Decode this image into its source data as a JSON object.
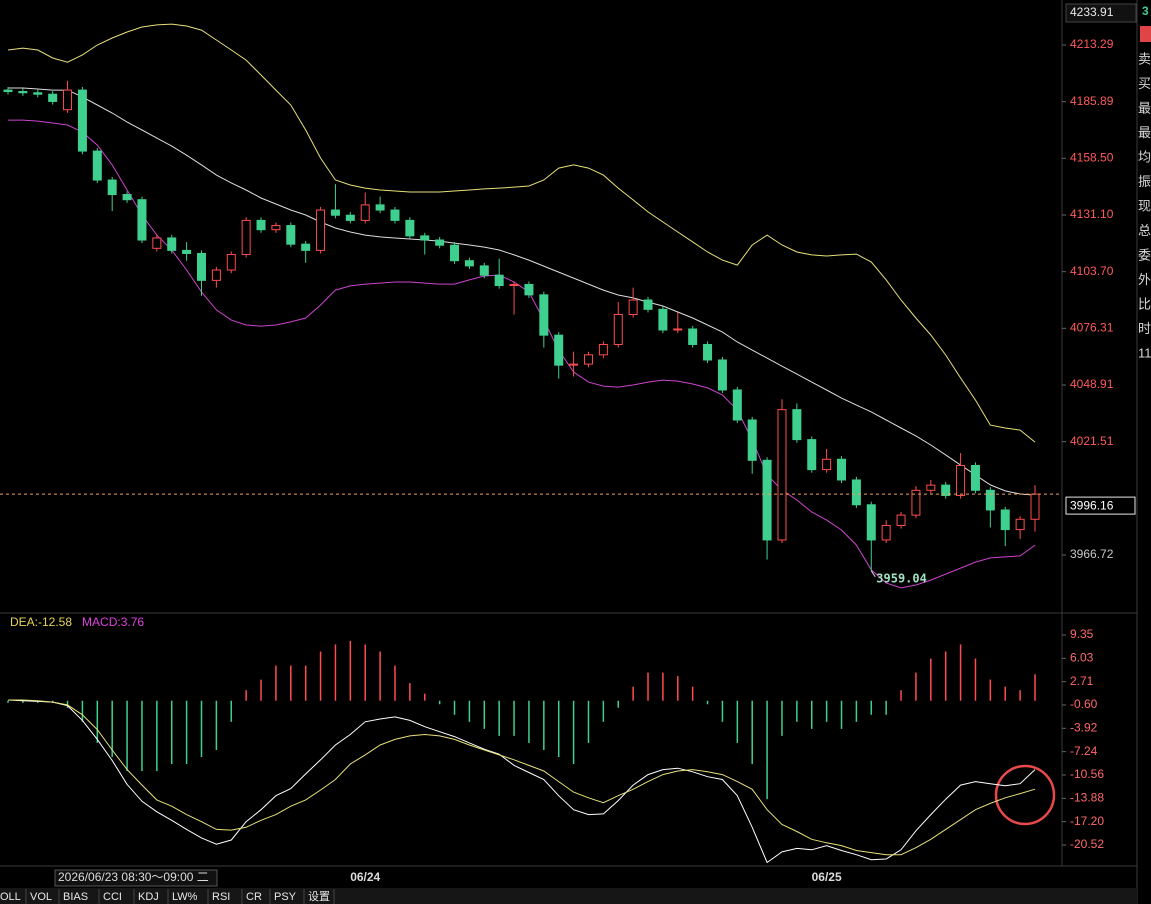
{
  "chart_data": [
    {
      "type": "candlestick",
      "categories": [
        null,
        null,
        null,
        null,
        null,
        null,
        null,
        null,
        null,
        null,
        null,
        null,
        null,
        null,
        null,
        null,
        null,
        null,
        null,
        null,
        null,
        null,
        null,
        null,
        "06/24",
        null,
        null,
        null,
        null,
        null,
        null,
        null,
        null,
        null,
        null,
        null,
        null,
        null,
        null,
        null,
        null,
        null,
        null,
        null,
        null,
        null,
        null,
        null,
        null,
        null,
        null,
        null,
        null,
        null,
        null,
        "06/25",
        null,
        null,
        null,
        null,
        null,
        null,
        null,
        null,
        null,
        null,
        null,
        null,
        null,
        null
      ],
      "open": [
        4191.5,
        4190.8,
        4190.2,
        4189.5,
        4182.0,
        4191.5,
        4162.0,
        4148.0,
        4141.0,
        4138.5,
        4115.0,
        4120.0,
        4114.0,
        4112.5,
        4099.5,
        4104.5,
        4112.0,
        4128.5,
        4124.0,
        4126.0,
        4117.0,
        4114.0,
        4133.5,
        4131.0,
        4128.5,
        4136.0,
        4133.5,
        4128.5,
        4121.0,
        4119.0,
        4116.5,
        4109.0,
        4106.5,
        4102.0,
        4097.0,
        4097.5,
        4092.5,
        4073.0,
        4058.5,
        4059.0,
        4063.5,
        4068.5,
        4083.0,
        4090.0,
        4085.5,
        4075.5,
        4076.0,
        4068.5,
        4061.0,
        4046.5,
        4032.0,
        4012.5,
        3974.0,
        4037.0,
        4022.5,
        4008.0,
        4013.0,
        4003.0,
        3991.0,
        3974.0,
        3981.0,
        3986.0,
        3998.0,
        4000.5,
        3995.5,
        4010.0,
        3998.0,
        3988.5,
        3979.0,
        3984.0
      ],
      "high": [
        4193.0,
        4192.3,
        4191.7,
        4191.0,
        4196.0,
        4193.0,
        4163.5,
        4149.5,
        4142.5,
        4140.0,
        4121.5,
        4121.5,
        4118.0,
        4114.0,
        4106.0,
        4113.5,
        4130.0,
        4130.0,
        4127.5,
        4127.5,
        4118.5,
        4135.0,
        4146.0,
        4132.5,
        4142.0,
        4140.0,
        4135.0,
        4130.0,
        4122.5,
        4120.5,
        4118.0,
        4110.5,
        4108.0,
        4110.0,
        4099.0,
        4099.0,
        4094.0,
        4074.5,
        4065.0,
        4065.0,
        4070.0,
        4089.0,
        4096.0,
        4091.5,
        4087.0,
        4084.0,
        4077.5,
        4070.0,
        4062.5,
        4048.0,
        4033.5,
        4014.0,
        4042.0,
        4040.0,
        4024.0,
        4018.0,
        4014.5,
        4004.5,
        3992.5,
        3983.5,
        3987.5,
        4000.0,
        4003.0,
        4002.0,
        4016.0,
        4011.5,
        3999.5,
        3990.0,
        3985.5,
        4000.5
      ],
      "low": [
        4189.3,
        4188.7,
        4188.0,
        4184.5,
        4180.5,
        4160.5,
        4146.5,
        4133.0,
        4137.0,
        4117.5,
        4113.5,
        4112.5,
        4109.0,
        4092.0,
        4096.0,
        4103.0,
        4110.5,
        4122.5,
        4122.5,
        4115.5,
        4108.0,
        4112.5,
        4129.5,
        4127.0,
        4127.0,
        4132.0,
        4127.0,
        4119.5,
        4112.0,
        4115.0,
        4107.5,
        4105.0,
        4100.5,
        4095.5,
        4083.0,
        4091.0,
        4067.0,
        4052.0,
        4053.0,
        4057.5,
        4062.0,
        4067.0,
        4081.5,
        4084.0,
        4074.0,
        4074.0,
        4067.0,
        4059.5,
        4045.0,
        4030.5,
        4006.0,
        3964.5,
        3972.5,
        4021.0,
        4006.5,
        4006.5,
        4001.5,
        3989.5,
        3959.04,
        3972.5,
        3979.5,
        3984.5,
        3996.5,
        3994.0,
        3994.0,
        3996.5,
        3980.0,
        3971.0,
        3974.5,
        3978.0
      ],
      "close": [
        4190.8,
        4190.2,
        4189.5,
        4186.0,
        4191.5,
        4162.0,
        4148.0,
        4141.0,
        4138.5,
        4119.0,
        4120.0,
        4114.0,
        4112.5,
        4099.5,
        4104.5,
        4112.0,
        4128.5,
        4124.0,
        4126.0,
        4117.0,
        4114.0,
        4133.5,
        4131.0,
        4128.5,
        4136.0,
        4133.5,
        4128.5,
        4121.0,
        4119.0,
        4116.5,
        4109.0,
        4106.5,
        4102.0,
        4097.0,
        4097.5,
        4092.5,
        4073.0,
        4058.5,
        4059.0,
        4063.5,
        4068.5,
        4083.0,
        4090.0,
        4085.5,
        4075.5,
        4076.0,
        4068.5,
        4061.0,
        4046.5,
        4032.0,
        4012.5,
        3974.0,
        4037.0,
        4022.5,
        4008.0,
        4013.0,
        4003.0,
        3991.0,
        3974.0,
        3981.0,
        3986.0,
        3998.0,
        4000.5,
        3995.5,
        4010.0,
        3998.0,
        3988.5,
        3979.0,
        3984.0,
        3996.16
      ],
      "up_color": "#ff4d4d",
      "down_color": "#3fd08f",
      "bands": [
        {
          "color": "#e6e07a",
          "values": [
            4210.9,
            4211.8,
            4210.9,
            4207.0,
            4205.0,
            4208.5,
            4213.3,
            4216.7,
            4219.6,
            4222.0,
            4223.0,
            4223.4,
            4222.5,
            4220.5,
            4215.7,
            4210.9,
            4206.0,
            4198.8,
            4191.5,
            4184.3,
            4172.2,
            4158.6,
            4148.0,
            4145.6,
            4144.1,
            4143.2,
            4142.7,
            4142.2,
            4142.2,
            4142.2,
            4142.7,
            4143.2,
            4143.7,
            4144.1,
            4144.6,
            4145.1,
            4148.0,
            4153.8,
            4155.3,
            4153.8,
            4150.4,
            4144.1,
            4138.4,
            4132.6,
            4127.7,
            4122.9,
            4118.1,
            4113.2,
            4109.3,
            4106.9,
            4116.6,
            4121.4,
            4116.6,
            4113.2,
            4111.8,
            4111.3,
            4111.8,
            4112.2,
            4108.4,
            4099.7,
            4090.0,
            4081.3,
            4073.1,
            4063.4,
            4052.3,
            4041.6,
            4029.5,
            4028.1,
            4027.1,
            4021.3
          ]
        },
        {
          "color": "#dddddd",
          "values": [
            4192.5,
            4192.5,
            4192.0,
            4191.5,
            4191.5,
            4188.2,
            4184.3,
            4180.4,
            4176.0,
            4172.2,
            4168.3,
            4164.4,
            4160.0,
            4155.3,
            4150.4,
            4146.6,
            4143.2,
            4139.3,
            4136.4,
            4133.5,
            4131.1,
            4127.7,
            4124.8,
            4122.9,
            4121.4,
            4120.5,
            4120.0,
            4119.5,
            4119.0,
            4118.5,
            4117.5,
            4116.6,
            4115.6,
            4114.2,
            4111.8,
            4109.3,
            4106.4,
            4103.5,
            4100.6,
            4097.7,
            4094.8,
            4092.4,
            4091.0,
            4089.0,
            4087.1,
            4084.2,
            4081.3,
            4077.9,
            4074.5,
            4069.7,
            4065.8,
            4061.9,
            4058.0,
            4054.2,
            4050.3,
            4046.5,
            4042.6,
            4039.2,
            4035.9,
            4032.0,
            4028.1,
            4024.3,
            4019.9,
            4015.1,
            4010.2,
            4005.4,
            4000.6,
            3997.7,
            3996.2,
            3995.7
          ]
        },
        {
          "color": "#cc44cc",
          "values": [
            4177.0,
            4177.0,
            4176.5,
            4175.6,
            4174.6,
            4171.2,
            4164.9,
            4155.3,
            4143.2,
            4131.1,
            4121.4,
            4114.2,
            4104.5,
            4093.9,
            4085.2,
            4080.3,
            4077.9,
            4077.4,
            4077.9,
            4079.4,
            4081.3,
            4087.6,
            4094.8,
            4096.8,
            4097.7,
            4098.2,
            4098.7,
            4098.7,
            4098.2,
            4097.7,
            4097.7,
            4099.7,
            4101.6,
            4102.1,
            4098.7,
            4093.9,
            4080.3,
            4065.8,
            4055.2,
            4050.3,
            4048.4,
            4047.9,
            4048.9,
            4050.3,
            4051.3,
            4050.8,
            4049.4,
            4047.5,
            4044.1,
            4036.8,
            4022.3,
            4005.4,
            3998.1,
            3993.3,
            3987.5,
            3983.6,
            3978.8,
            3971.5,
            3959.5,
            3953.2,
            3950.8,
            3952.2,
            3954.6,
            3957.5,
            3960.4,
            3963.3,
            3965.3,
            3965.8,
            3966.3,
            3971.5
          ]
        }
      ],
      "ylim": [
        3939.16,
        4235.05
      ],
      "yticks": [
        4213.29,
        4185.89,
        {
          "value": 4158.5,
          "label": "4158.50"
        },
        {
          "value": 4131.1,
          "label": "4131.10"
        },
        {
          "value": 4103.7,
          "label": "4103.70"
        },
        4076.31,
        4048.91,
        4021.51,
        3966.72
      ],
      "max_label": 4233.91,
      "cursor_label": "2026/06/23 08:30～09:00 二"
    },
    {
      "type": "macd",
      "legend": [
        {
          "text": "DEA:-12.58",
          "color": "#e6d35a"
        },
        {
          "text": "MACD:3.76",
          "color": "#e040e0"
        }
      ],
      "values": [
        -0.3,
        -0.3,
        -0.3,
        -0.3,
        -1,
        -3,
        -6,
        -8,
        -10,
        -10,
        -10,
        -9,
        -9,
        -8,
        -7,
        -3,
        1.5,
        3,
        5,
        5,
        5,
        7,
        8,
        8.5,
        8,
        7,
        5,
        2.5,
        1,
        -0.5,
        -2,
        -3,
        -4,
        -5,
        -5,
        -6,
        -7,
        -8,
        -9,
        -6,
        -3,
        -1,
        2,
        4,
        4,
        3.5,
        2,
        -0.5,
        -3,
        -6,
        -9,
        -14,
        -5,
        -3,
        -4,
        -3,
        -4,
        -3,
        -2,
        -2,
        1.5,
        4,
        6,
        7,
        8,
        6,
        3,
        2,
        1.5,
        3.76
      ],
      "up_color": "#ff4d4d",
      "down_color": "#3fd08f",
      "lines": [
        {
          "color": "#ffffff",
          "values": [
            0.1,
            0.0,
            -0.1,
            -0.2,
            -0.7,
            -2.8,
            -5.5,
            -8.5,
            -11.9,
            -14.3,
            -15.8,
            -17.0,
            -18.3,
            -19.5,
            -20.4,
            -19.8,
            -17.2,
            -15.5,
            -13.5,
            -12.5,
            -10.4,
            -8.4,
            -6.3,
            -4.8,
            -3.0,
            -2.6,
            -2.3,
            -2.8,
            -3.7,
            -4.4,
            -5.1,
            -6.0,
            -6.9,
            -7.6,
            -9.2,
            -10.2,
            -11.2,
            -13.5,
            -15.5,
            -16.2,
            -16.1,
            -14.2,
            -12.0,
            -10.5,
            -9.8,
            -9.6,
            -10.1,
            -10.8,
            -11.2,
            -13.5,
            -18.0,
            -23.0,
            -21.5,
            -21.0,
            -21.2,
            -20.6,
            -21.3,
            -21.9,
            -22.6,
            -22.5,
            -21.2,
            -18.5,
            -16.2,
            -14.0,
            -12.0,
            -11.5,
            -11.8,
            -12.1,
            -11.8,
            -9.8
          ]
        },
        {
          "color": "#e6e07a",
          "values": [
            0.1,
            0.1,
            0.0,
            -0.2,
            -0.6,
            -2.0,
            -4.1,
            -7.0,
            -9.8,
            -12.0,
            -14.1,
            -15.0,
            -16.2,
            -17.2,
            -18.3,
            -18.4,
            -18.0,
            -17.0,
            -16.2,
            -15.0,
            -14.1,
            -12.7,
            -11.2,
            -9.0,
            -7.7,
            -6.3,
            -5.5,
            -5.0,
            -4.8,
            -5.0,
            -5.5,
            -6.3,
            -7.0,
            -7.7,
            -8.4,
            -9.2,
            -10.0,
            -11.5,
            -13.0,
            -13.8,
            -14.5,
            -13.5,
            -12.6,
            -11.5,
            -10.5,
            -10.0,
            -9.8,
            -10.1,
            -10.5,
            -11.5,
            -12.6,
            -15.5,
            -17.6,
            -18.6,
            -19.7,
            -20.2,
            -20.6,
            -21.3,
            -21.6,
            -21.9,
            -21.9,
            -20.9,
            -19.7,
            -18.3,
            -16.9,
            -15.5,
            -14.6,
            -13.8,
            -13.2,
            -12.58
          ]
        }
      ],
      "ylim": [
        -23.36,
        12.19
      ],
      "yticks": [
        9.35,
        6.03,
        2.71,
        {
          "value": -0.6,
          "label": "-0.60"
        },
        -3.92,
        -7.24,
        -10.56,
        -13.88,
        {
          "value": -17.2,
          "label": "-17.20"
        },
        -20.52
      ]
    }
  ],
  "side_panel": {
    "top": "3",
    "labels": [
      "卖",
      "买",
      "最",
      "最",
      "均",
      "振",
      "现",
      "总",
      "委",
      "外",
      "比",
      "时",
      "11"
    ]
  },
  "tabs": [
    "OLL",
    "VOL",
    "BIAS",
    "CCI",
    "KDJ",
    "LW%",
    "RSI",
    "CR",
    "PSY",
    "设置"
  ]
}
